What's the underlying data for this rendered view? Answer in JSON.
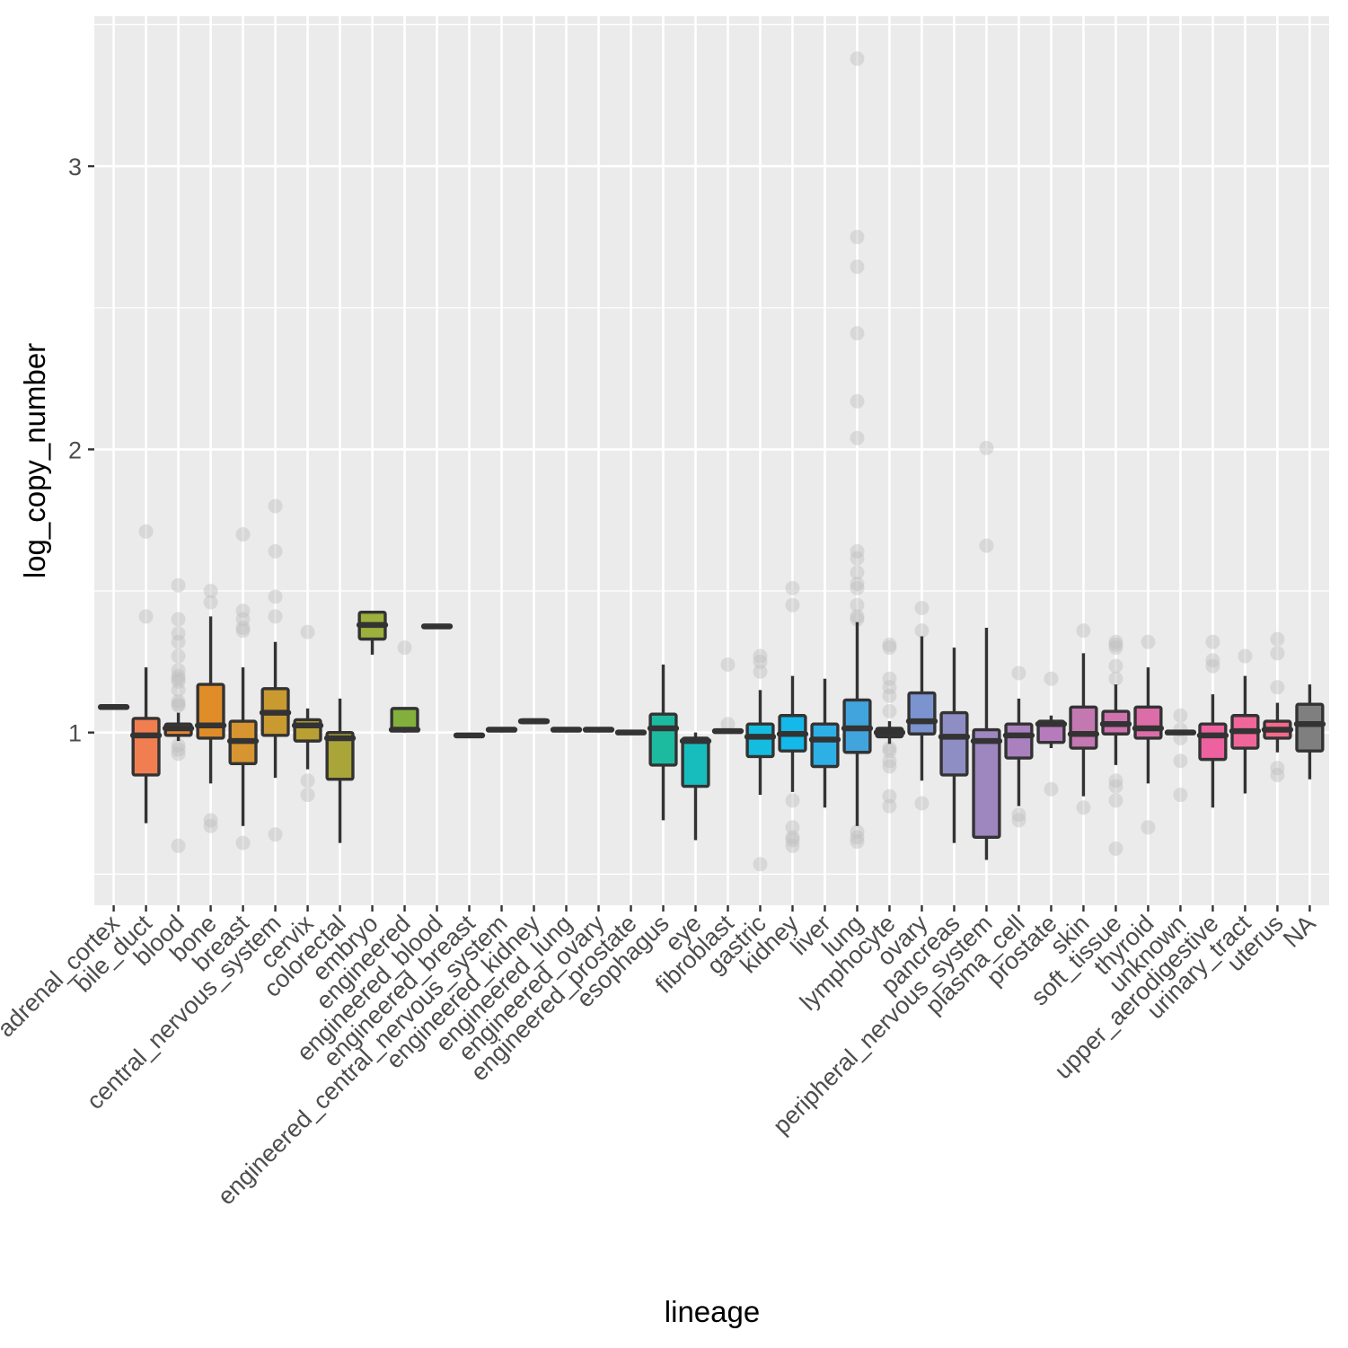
{
  "chart_data": {
    "type": "boxplot",
    "xlabel": "lineage",
    "ylabel": "log_copy_number",
    "ylim": [
      0.39,
      3.53
    ],
    "yticks": [
      1,
      2,
      3
    ],
    "grid": true,
    "legend": "none",
    "outlier_color": "#BEBEBE",
    "panel_background": "#EBEBEB",
    "categories": [
      {
        "name": "adrenal_cortex",
        "color": "#F8766D",
        "stats": [
          1.09,
          1.09,
          1.09,
          1.09,
          1.09
        ],
        "outliers": []
      },
      {
        "name": "bile_duct",
        "color": "#F17E50",
        "stats": [
          0.68,
          0.85,
          0.99,
          1.05,
          1.23
        ],
        "outliers": [
          1.71,
          1.41
        ]
      },
      {
        "name": "blood",
        "color": "#E98530",
        "stats": [
          0.97,
          0.99,
          1.015,
          1.03,
          1.07
        ],
        "outliers": [
          1.52,
          1.4,
          1.35,
          1.32,
          1.27,
          1.22,
          1.2,
          1.19,
          1.18,
          1.15,
          1.11,
          1.1,
          1.095,
          0.955,
          0.94,
          0.925,
          0.6
        ]
      },
      {
        "name": "bone",
        "color": "#E08C28",
        "stats": [
          0.82,
          0.98,
          1.025,
          1.17,
          1.41
        ],
        "outliers": [
          1.5,
          1.46,
          0.69,
          0.67
        ]
      },
      {
        "name": "breast",
        "color": "#D69530",
        "stats": [
          0.67,
          0.89,
          0.97,
          1.04,
          1.23
        ],
        "outliers": [
          1.7,
          1.43,
          1.4,
          1.37,
          1.36,
          0.61
        ]
      },
      {
        "name": "central_nervous_system",
        "color": "#C89A30",
        "stats": [
          0.84,
          0.99,
          1.07,
          1.155,
          1.32
        ],
        "outliers": [
          1.8,
          1.64,
          1.48,
          1.41,
          0.64
        ]
      },
      {
        "name": "cervix",
        "color": "#BAA033",
        "stats": [
          0.87,
          0.97,
          1.025,
          1.045,
          1.085
        ],
        "outliers": [
          1.355,
          0.83,
          0.78
        ]
      },
      {
        "name": "colorectal",
        "color": "#AAA538",
        "stats": [
          0.61,
          0.835,
          0.98,
          1.0,
          1.12
        ],
        "outliers": []
      },
      {
        "name": "embryo",
        "color": "#9DB03C",
        "stats": [
          1.275,
          1.33,
          1.38,
          1.425,
          1.43
        ],
        "outliers": []
      },
      {
        "name": "engineered",
        "color": "#83B03D",
        "stats": [
          1.0,
          1.01,
          1.01,
          1.085,
          1.085
        ],
        "outliers": [
          1.3
        ]
      },
      {
        "name": "engineered_blood",
        "color": "#6BB13A",
        "stats": [
          1.375,
          1.375,
          1.375,
          1.375,
          1.375
        ],
        "outliers": []
      },
      {
        "name": "engineered_breast",
        "color": "#4BB440",
        "stats": [
          0.99,
          0.99,
          0.99,
          0.99,
          0.99
        ],
        "outliers": []
      },
      {
        "name": "engineered_central_nervous_system",
        "color": "#00B81F",
        "stats": [
          1.01,
          1.01,
          1.01,
          1.01,
          1.01
        ],
        "outliers": []
      },
      {
        "name": "engineered_kidney",
        "color": "#00BA42",
        "stats": [
          1.03,
          1.035,
          1.04,
          1.045,
          1.045
        ],
        "outliers": []
      },
      {
        "name": "engineered_lung",
        "color": "#00BC5A",
        "stats": [
          1.01,
          1.01,
          1.01,
          1.01,
          1.01
        ],
        "outliers": []
      },
      {
        "name": "engineered_ovary",
        "color": "#00BE70",
        "stats": [
          1.01,
          1.01,
          1.01,
          1.01,
          1.01
        ],
        "outliers": []
      },
      {
        "name": "engineered_prostate",
        "color": "#00C085",
        "stats": [
          1.0,
          1.0,
          1.0,
          1.0,
          1.0
        ],
        "outliers": []
      },
      {
        "name": "esophagus",
        "color": "#1CBBA0",
        "stats": [
          0.69,
          0.885,
          1.015,
          1.065,
          1.24
        ],
        "outliers": []
      },
      {
        "name": "eye",
        "color": "#17BDBD",
        "stats": [
          0.62,
          0.81,
          0.97,
          0.98,
          1.0
        ],
        "outliers": []
      },
      {
        "name": "fibroblast",
        "color": "#00BDD0",
        "stats": [
          1.005,
          1.005,
          1.005,
          1.005,
          1.005
        ],
        "outliers": [
          1.24,
          1.03
        ]
      },
      {
        "name": "gastric",
        "color": "#14BDE0",
        "stats": [
          0.78,
          0.915,
          0.985,
          1.03,
          1.15
        ],
        "outliers": [
          1.27,
          1.25,
          1.215,
          0.535
        ]
      },
      {
        "name": "kidney",
        "color": "#14B9EA",
        "stats": [
          0.79,
          0.935,
          0.995,
          1.06,
          1.2
        ],
        "outliers": [
          1.51,
          1.45,
          0.76,
          0.665,
          0.63,
          0.62,
          0.6
        ]
      },
      {
        "name": "liver",
        "color": "#2DB0E6",
        "stats": [
          0.735,
          0.88,
          0.975,
          1.03,
          1.19
        ],
        "outliers": []
      },
      {
        "name": "lung",
        "color": "#42A4DC",
        "stats": [
          0.67,
          0.93,
          1.015,
          1.115,
          1.39
        ],
        "outliers": [
          3.38,
          2.75,
          2.645,
          2.41,
          2.17,
          2.04,
          1.64,
          1.615,
          1.565,
          1.525,
          1.51,
          1.45,
          1.41,
          1.4,
          0.65,
          0.63,
          0.615
        ]
      },
      {
        "name": "lymphocyte",
        "color": "#5A9AE0",
        "stats": [
          0.96,
          0.985,
          1.0,
          1.015,
          1.04
        ],
        "outliers": [
          1.31,
          1.3,
          1.19,
          1.16,
          1.13,
          1.075,
          0.945,
          0.935,
          0.9,
          0.88,
          0.775,
          0.74
        ]
      },
      {
        "name": "ovary",
        "color": "#7B93CF",
        "stats": [
          0.83,
          0.995,
          1.04,
          1.14,
          1.34
        ],
        "outliers": [
          1.44,
          1.36,
          0.75
        ]
      },
      {
        "name": "pancreas",
        "color": "#8E8DC4",
        "stats": [
          0.61,
          0.85,
          0.985,
          1.07,
          1.3
        ],
        "outliers": []
      },
      {
        "name": "peripheral_nervous_system",
        "color": "#9E86BF",
        "stats": [
          0.55,
          0.63,
          0.97,
          1.01,
          1.37
        ],
        "outliers": [
          2.005,
          1.66
        ]
      },
      {
        "name": "plasma_cell",
        "color": "#AB80BF",
        "stats": [
          0.74,
          0.91,
          0.99,
          1.03,
          1.12
        ],
        "outliers": [
          1.21,
          0.71,
          0.69
        ]
      },
      {
        "name": "prostate",
        "color": "#B57BBC",
        "stats": [
          0.945,
          0.965,
          1.03,
          1.04,
          1.06
        ],
        "outliers": [
          1.19,
          0.8
        ]
      },
      {
        "name": "skin",
        "color": "#C378B1",
        "stats": [
          0.775,
          0.945,
          0.995,
          1.09,
          1.28
        ],
        "outliers": [
          1.36,
          0.735
        ]
      },
      {
        "name": "soft_tissue",
        "color": "#CF72AE",
        "stats": [
          0.885,
          0.995,
          1.03,
          1.075,
          1.17
        ],
        "outliers": [
          1.32,
          1.31,
          1.3,
          1.235,
          1.19,
          0.83,
          0.81,
          0.76,
          0.59
        ]
      },
      {
        "name": "thyroid",
        "color": "#DC6DA8",
        "stats": [
          0.82,
          0.98,
          1.015,
          1.09,
          1.23
        ],
        "outliers": [
          1.32,
          0.665
        ]
      },
      {
        "name": "unknown",
        "color": "#E56AA0",
        "stats": [
          1.0,
          1.0,
          1.0,
          1.0,
          1.0
        ],
        "outliers": [
          1.06,
          1.01,
          0.98,
          0.9,
          0.78
        ]
      },
      {
        "name": "upper_aerodigestive",
        "color": "#EE619F",
        "stats": [
          0.735,
          0.905,
          0.99,
          1.03,
          1.135
        ],
        "outliers": [
          1.32,
          1.255,
          1.235
        ]
      },
      {
        "name": "urinary_tract",
        "color": "#F0669A",
        "stats": [
          0.785,
          0.945,
          1.005,
          1.06,
          1.2
        ],
        "outliers": [
          1.27
        ]
      },
      {
        "name": "uterus",
        "color": "#F36A8A",
        "stats": [
          0.93,
          0.98,
          1.01,
          1.04,
          1.105
        ],
        "outliers": [
          1.33,
          1.28,
          1.16,
          0.875,
          0.85
        ]
      },
      {
        "name": "NA",
        "color": "#7F7F7F",
        "stats": [
          0.835,
          0.935,
          1.03,
          1.1,
          1.17
        ],
        "outliers": []
      }
    ]
  }
}
